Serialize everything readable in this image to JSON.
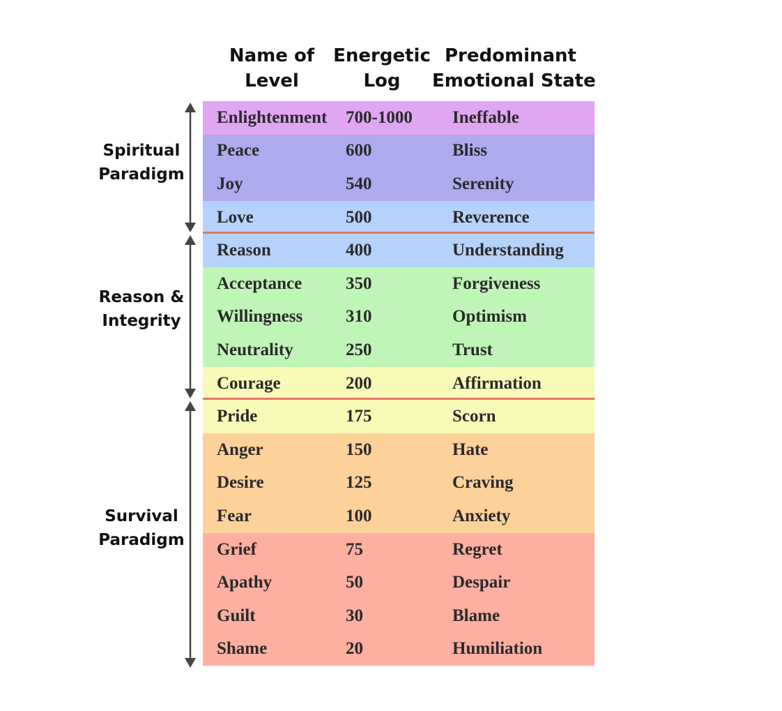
{
  "headers": {
    "name": [
      "Name of",
      "Level"
    ],
    "log": [
      "Energetic",
      "Log"
    ],
    "state": [
      "Predominant",
      "Emotional State"
    ]
  },
  "paradigms": [
    {
      "lines": [
        "Spiritual",
        "Paradigm"
      ]
    },
    {
      "lines": [
        "Reason &",
        "Integrity"
      ]
    },
    {
      "lines": [
        "Survival",
        "Paradigm"
      ]
    }
  ],
  "rows": [
    {
      "name": "Enlightenment",
      "log": "700-1000",
      "state": "Ineffable",
      "color": "#e0a6f2"
    },
    {
      "name": "Peace",
      "log": "600",
      "state": "Bliss",
      "color": "#adaaee"
    },
    {
      "name": "Joy",
      "log": "540",
      "state": "Serenity",
      "color": "#adaaee"
    },
    {
      "name": "Love",
      "log": "500",
      "state": "Reverence",
      "color": "#b4d2fa"
    },
    {
      "name": "Reason",
      "log": "400",
      "state": "Understanding",
      "color": "#b4d2fa"
    },
    {
      "name": "Acceptance",
      "log": "350",
      "state": "Forgiveness",
      "color": "#bff5b6"
    },
    {
      "name": "Willingness",
      "log": "310",
      "state": "Optimism",
      "color": "#bff5b6"
    },
    {
      "name": "Neutrality",
      "log": "250",
      "state": "Trust",
      "color": "#bff5b6"
    },
    {
      "name": "Courage",
      "log": "200",
      "state": "Affirmation",
      "color": "#fafab8"
    },
    {
      "name": "Pride",
      "log": "175",
      "state": "Scorn",
      "color": "#fafab8"
    },
    {
      "name": "Anger",
      "log": "150",
      "state": "Hate",
      "color": "#fdd19a"
    },
    {
      "name": "Desire",
      "log": "125",
      "state": "Craving",
      "color": "#fdd19a"
    },
    {
      "name": "Fear",
      "log": "100",
      "state": "Anxiety",
      "color": "#fdd19a"
    },
    {
      "name": "Grief",
      "log": "75",
      "state": "Regret",
      "color": "#fdafa0"
    },
    {
      "name": "Apathy",
      "log": "50",
      "state": "Despair",
      "color": "#fdafa0"
    },
    {
      "name": "Guilt",
      "log": "30",
      "state": "Blame",
      "color": "#fdafa0"
    },
    {
      "name": "Shame",
      "log": "20",
      "state": "Humiliation",
      "color": "#fdafa0"
    }
  ],
  "colors": {
    "separator": "#e8726a",
    "arrow": "#444444"
  }
}
